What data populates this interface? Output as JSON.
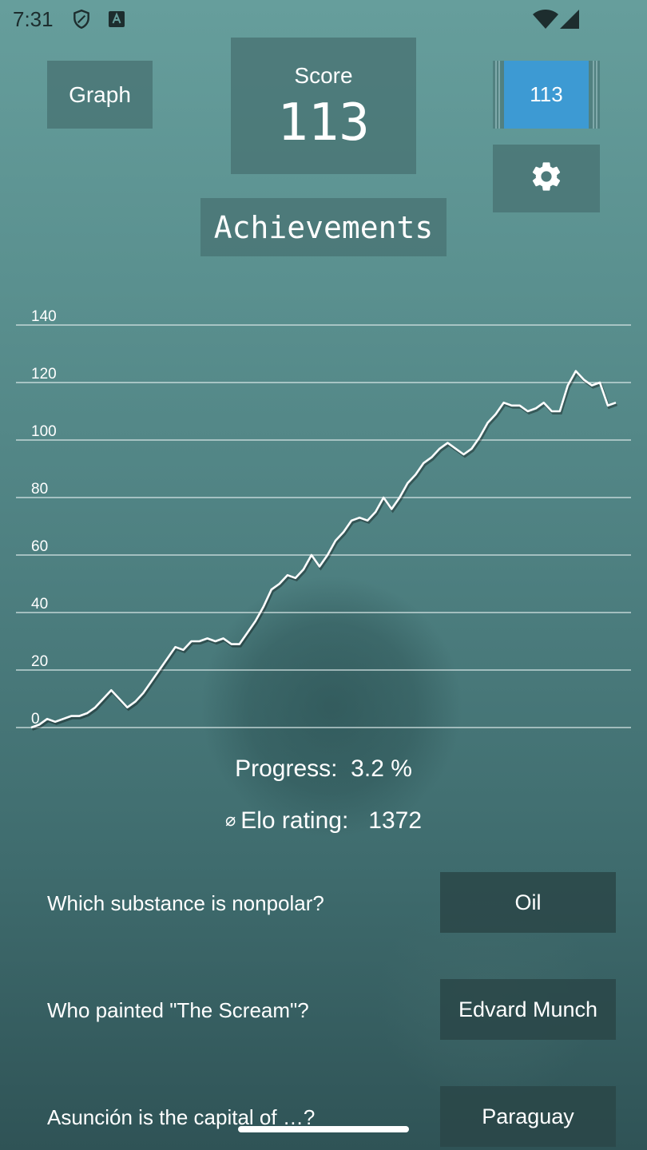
{
  "status_bar": {
    "time": "7:31"
  },
  "header": {
    "graph_button": "Graph",
    "score_label": "Score",
    "score_value": "113",
    "counter_value": "113",
    "achievements_button": "Achievements"
  },
  "chart_data": {
    "type": "line",
    "y_ticks": [
      "140",
      "120",
      "100",
      "80",
      "60",
      "40",
      "20",
      "0"
    ],
    "ylim": [
      0,
      140
    ],
    "grid": true,
    "series": [
      {
        "values": [
          0,
          1,
          3,
          2,
          3,
          4,
          4,
          5,
          7,
          10,
          13,
          10,
          7,
          9,
          12,
          16,
          20,
          24,
          28,
          27,
          30,
          30,
          31,
          30,
          31,
          29,
          29,
          33,
          37,
          42,
          48,
          50,
          53,
          52,
          55,
          60,
          56,
          60,
          65,
          68,
          72,
          73,
          72,
          75,
          80,
          76,
          80,
          85,
          88,
          92,
          94,
          97,
          99,
          97,
          95,
          97,
          101,
          106,
          109,
          113,
          112,
          112,
          110,
          111,
          113,
          110,
          110,
          119,
          124,
          121,
          119,
          120,
          112,
          113
        ]
      }
    ],
    "colors": {
      "line": "#ffffff",
      "grid": "#d8e6e6"
    }
  },
  "stats": {
    "progress_label": "Progress:",
    "progress_value": "3.2 %",
    "elo_symbol": "⌀",
    "elo_label": "Elo rating:",
    "elo_value": "1372"
  },
  "qa": [
    {
      "question": "Which substance is nonpolar?",
      "answer": "Oil"
    },
    {
      "question": "Who painted \"The Scream\"?",
      "answer": "Edvard Munch"
    },
    {
      "question": "Asunción is the capital of …?",
      "answer": "Paraguay"
    }
  ]
}
